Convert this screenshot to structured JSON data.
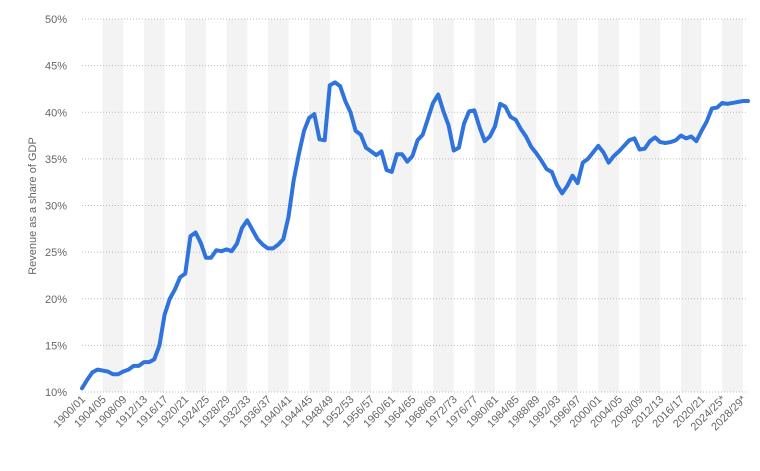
{
  "chart_data": {
    "type": "line",
    "title": "",
    "xlabel": "",
    "ylabel": "Revenue as a share of GDP",
    "ylim": [
      10,
      50
    ],
    "yticks": [
      "10%",
      "15%",
      "20%",
      "25%",
      "30%",
      "35%",
      "40%",
      "45%",
      "50%"
    ],
    "ytick_values": [
      10,
      15,
      20,
      25,
      30,
      35,
      40,
      45,
      50
    ],
    "xtick_labels": [
      "1900/01",
      "1904/05",
      "1908/09",
      "1912/13",
      "1916/17",
      "1920/21",
      "1924/25",
      "1928/29",
      "1932/33",
      "1936/37",
      "1940/41",
      "1944/45",
      "1948/49",
      "1952/53",
      "1956/57",
      "1960/61",
      "1964/65",
      "1968/69",
      "1972/73",
      "1976/77",
      "1980/81",
      "1984/85",
      "1988/89",
      "1992/93",
      "1996/97",
      "2000/01",
      "2004/05",
      "2008/09",
      "2012/13",
      "2016/17",
      "2020/21",
      "2024/25*",
      "2028/29*"
    ],
    "grid": true,
    "line_color": "#2f73dc",
    "band_color": "#f3f3f3",
    "series": [
      {
        "values": [
          10.4,
          11.3,
          12.1,
          12.4,
          12.3,
          12.2,
          11.9,
          11.9,
          12.2,
          12.4,
          12.8,
          12.8,
          13.2,
          13.2,
          13.5,
          15.0,
          18.3,
          20.0,
          21.0,
          22.3,
          22.7,
          26.7,
          27.1,
          26.0,
          24.4,
          24.4,
          25.2,
          25.1,
          25.3,
          25.1,
          25.9,
          27.6,
          28.4,
          27.4,
          26.4,
          25.8,
          25.4,
          25.4,
          25.8,
          26.4,
          28.8,
          32.7,
          35.5,
          38.0,
          39.4,
          39.8,
          37.1,
          37.0,
          42.9,
          43.2,
          42.8,
          41.2,
          40.0,
          38.0,
          37.6,
          36.2,
          35.8,
          35.4,
          35.8,
          33.8,
          33.6,
          35.5,
          35.5,
          34.7,
          35.3,
          37.0,
          37.6,
          39.3,
          41.0,
          41.9,
          40.1,
          38.6,
          35.9,
          36.2,
          38.8,
          40.1,
          40.2,
          38.4,
          36.9,
          37.4,
          38.5,
          40.9,
          40.6,
          39.5,
          39.2,
          38.2,
          37.4,
          36.3,
          35.6,
          34.8,
          33.9,
          33.6,
          32.2,
          31.3,
          32.1,
          33.2,
          32.4,
          34.6,
          35.0,
          35.7,
          36.4,
          35.7,
          34.6,
          35.3,
          35.8,
          36.4,
          37.0,
          37.2,
          36.0,
          36.1,
          36.9,
          37.3,
          36.8,
          36.7,
          36.8,
          37.0,
          37.5,
          37.2,
          37.4,
          36.9,
          38.0,
          39.0,
          40.4,
          40.5,
          41.0,
          40.9,
          41.0,
          41.1,
          41.2,
          41.2
        ]
      }
    ]
  }
}
